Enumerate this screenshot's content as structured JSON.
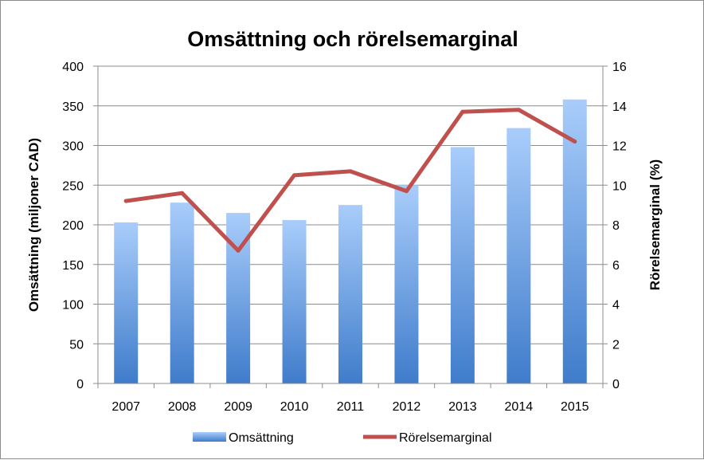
{
  "chart_data": {
    "type": "bar",
    "title": "Omsättning och rörelsemarginal",
    "categories": [
      "2007",
      "2008",
      "2009",
      "2010",
      "2011",
      "2012",
      "2013",
      "2014",
      "2015"
    ],
    "series": [
      {
        "name": "Omsättning",
        "type": "bar",
        "axis": "left",
        "values": [
          203,
          228,
          215,
          206,
          225,
          250,
          298,
          322,
          358
        ]
      },
      {
        "name": "Rörelsemarginal",
        "type": "line",
        "axis": "right",
        "values": [
          9.2,
          9.6,
          6.7,
          10.5,
          10.7,
          9.7,
          13.7,
          13.8,
          12.2
        ]
      }
    ],
    "ylabel": "Omsättning (miljoner CAD)",
    "y2label": "Rörelsemarginal (%)",
    "ylim": [
      0,
      400
    ],
    "y2lim": [
      0,
      16
    ],
    "yticks": [
      "0",
      "50",
      "100",
      "150",
      "200",
      "250",
      "300",
      "350",
      "400"
    ],
    "y2ticks": [
      "0",
      "2",
      "4",
      "6",
      "8",
      "10",
      "12",
      "14",
      "16"
    ],
    "grid": true,
    "legend": "bottom",
    "colors": {
      "bar_top": "#a9cdfb",
      "bar_bottom": "#3f7ccb",
      "line": "#c0504d",
      "grid": "#8c8c8c",
      "axis": "#8c8c8c"
    }
  }
}
